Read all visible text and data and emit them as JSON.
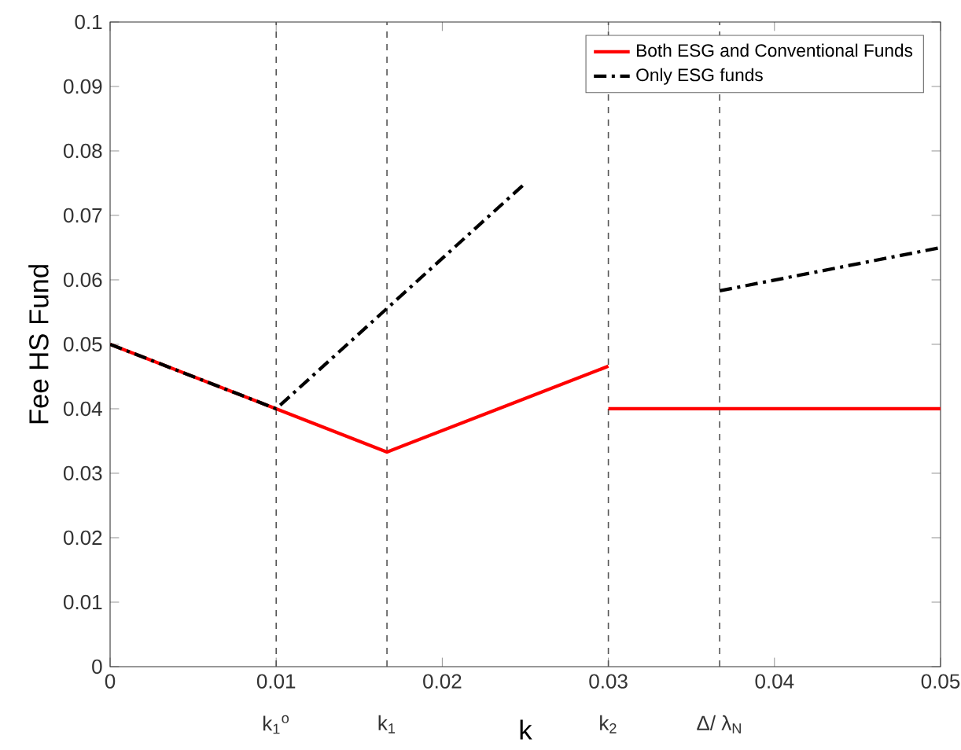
{
  "chart_data": {
    "type": "line",
    "xlabel": "k",
    "ylabel": "Fee HS Fund",
    "xlim": [
      0,
      0.05
    ],
    "xticks": [
      0,
      0.01,
      0.02,
      0.03,
      0.04,
      0.05
    ],
    "ylim": [
      0,
      0.1
    ],
    "yticks": [
      0,
      0.01,
      0.02,
      0.03,
      0.04,
      0.05,
      0.06,
      0.07,
      0.08,
      0.09,
      0.1
    ],
    "grid": false,
    "legend": "top right",
    "series": [
      {
        "name": "Both ESG and Conventional Funds",
        "color": "#ff0000",
        "line_style": "solid",
        "x": [
          0,
          0.01,
          0.01667,
          0.03
        ],
        "values": [
          0.05,
          0.04,
          0.0333,
          0.0466
        ]
      },
      {
        "name": "Only ESG funds",
        "color": "#000000",
        "line_style": "dashdot",
        "x": [
          0,
          0.01,
          0.025
        ],
        "values": [
          0.05,
          0.04,
          0.075
        ]
      },
      {
        "color": "#ff0000",
        "line_style": "solid",
        "x": [
          0.03,
          0.05
        ],
        "values": [
          0.04,
          0.04
        ]
      },
      {
        "color": "#000000",
        "line_style": "dashdot",
        "x": [
          0.0367,
          0.05
        ],
        "values": [
          0.0583,
          0.065
        ]
      }
    ],
    "ref_lines": [
      {
        "axis": "x",
        "value": 0.01,
        "label": "k$_{1}$$^{o}$",
        "color": "#555555",
        "line_style": "dashed"
      },
      {
        "axis": "x",
        "value": 0.01667,
        "label": "k$_{1}$",
        "color": "#555555",
        "line_style": "dashed"
      },
      {
        "axis": "x",
        "value": 0.03,
        "label": "k$_{2}$",
        "color": "#555555",
        "line_style": "dashed"
      },
      {
        "axis": "x",
        "value": 0.0367,
        "label": "Δ/ λ$_{N}$",
        "color": "#555555",
        "line_style": "dashed"
      }
    ]
  }
}
